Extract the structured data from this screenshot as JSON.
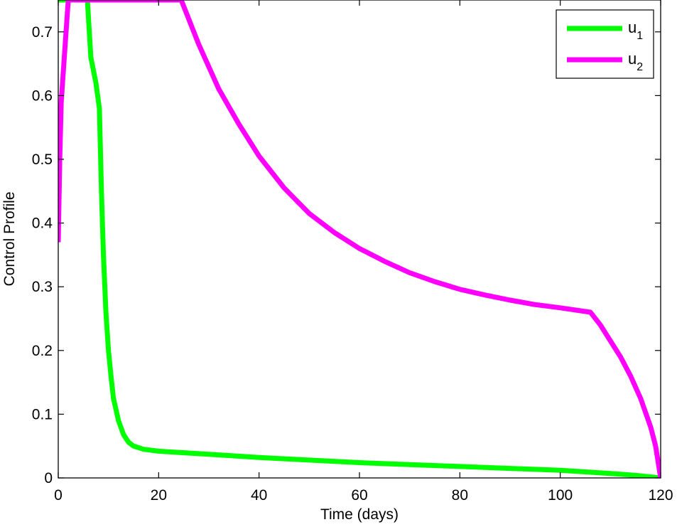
{
  "chart_data": {
    "type": "line",
    "title": "",
    "xlabel": "Time (days)",
    "ylabel": "Control Profile",
    "xlim": [
      0,
      120
    ],
    "ylim": [
      0,
      0.75
    ],
    "xticks": [
      0,
      20,
      40,
      60,
      80,
      100,
      120
    ],
    "xtick_labels": [
      "0",
      "20",
      "40",
      "60",
      "80",
      "100",
      "120"
    ],
    "yticks": [
      0,
      0.1,
      0.2,
      0.3,
      0.4,
      0.5,
      0.6,
      0.7
    ],
    "ytick_labels": [
      "0",
      "0.1",
      "0.2",
      "0.3",
      "0.4",
      "0.5",
      "0.6",
      "0.7"
    ],
    "grid": false,
    "legend_position": "upper right",
    "series": [
      {
        "name": "u1",
        "label_base": "u",
        "label_sub": "1",
        "color": "#00ff00",
        "points": [
          [
            0,
            0.75
          ],
          [
            5.8,
            0.75
          ],
          [
            6.5,
            0.66
          ],
          [
            7.5,
            0.62
          ],
          [
            8.2,
            0.58
          ],
          [
            8.6,
            0.45
          ],
          [
            9.0,
            0.35
          ],
          [
            9.5,
            0.26
          ],
          [
            10,
            0.2
          ],
          [
            10.5,
            0.16
          ],
          [
            11,
            0.125
          ],
          [
            12,
            0.09
          ],
          [
            13,
            0.068
          ],
          [
            14,
            0.056
          ],
          [
            15,
            0.05
          ],
          [
            17,
            0.045
          ],
          [
            20,
            0.042
          ],
          [
            30,
            0.037
          ],
          [
            40,
            0.032
          ],
          [
            50,
            0.028
          ],
          [
            60,
            0.024
          ],
          [
            70,
            0.021
          ],
          [
            80,
            0.018
          ],
          [
            90,
            0.015
          ],
          [
            100,
            0.012
          ],
          [
            110,
            0.007
          ],
          [
            115,
            0.004
          ],
          [
            120,
            0.0
          ]
        ]
      },
      {
        "name": "u2",
        "label_base": "u",
        "label_sub": "2",
        "color": "#ff00ff",
        "points": [
          [
            0,
            0.37
          ],
          [
            0.3,
            0.5
          ],
          [
            0.6,
            0.59
          ],
          [
            1.2,
            0.66
          ],
          [
            2,
            0.75
          ],
          [
            24.5,
            0.75
          ],
          [
            28,
            0.68
          ],
          [
            32,
            0.61
          ],
          [
            36,
            0.555
          ],
          [
            40,
            0.505
          ],
          [
            45,
            0.455
          ],
          [
            50,
            0.415
          ],
          [
            55,
            0.385
          ],
          [
            60,
            0.36
          ],
          [
            65,
            0.34
          ],
          [
            70,
            0.322
          ],
          [
            75,
            0.308
          ],
          [
            80,
            0.296
          ],
          [
            85,
            0.287
          ],
          [
            90,
            0.279
          ],
          [
            95,
            0.272
          ],
          [
            100,
            0.267
          ],
          [
            106,
            0.26
          ],
          [
            108,
            0.24
          ],
          [
            110,
            0.215
          ],
          [
            112,
            0.19
          ],
          [
            114,
            0.16
          ],
          [
            116,
            0.125
          ],
          [
            118,
            0.08
          ],
          [
            119,
            0.05
          ],
          [
            120,
            0.0
          ]
        ]
      }
    ]
  },
  "colors": {
    "u1": "#00ff00",
    "u2": "#ff00ff",
    "axis": "#000000",
    "background": "#ffffff"
  }
}
